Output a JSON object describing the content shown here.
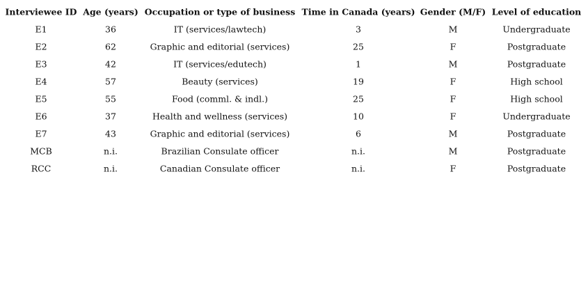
{
  "table": {
    "header": [
      "Interviewee ID",
      "Age (years)",
      "Occupation or type of business",
      "Time in Canada (years)",
      "Gender (M/F)",
      "Level of education"
    ],
    "rows": [
      [
        "E1",
        "36",
        "IT (services/lawtech)",
        "3",
        "M",
        "Undergraduate"
      ],
      [
        "E2",
        "62",
        "Graphic and editorial (services)",
        "25",
        "F",
        "Postgraduate"
      ],
      [
        "E3",
        "42",
        "IT (services/edutech)",
        "1",
        "M",
        "Postgraduate"
      ],
      [
        "E4",
        "57",
        "Beauty (services)",
        "19",
        "F",
        "High school"
      ],
      [
        "E5",
        "55",
        "Food (comml. & indl.)",
        "25",
        "F",
        "High school"
      ],
      [
        "E6",
        "37",
        "Health and wellness (services)",
        "10",
        "F",
        "Undergraduate"
      ],
      [
        "E7",
        "43",
        "Graphic and editorial (services)",
        "6",
        "M",
        "Postgraduate"
      ],
      [
        "MCB",
        "n.i.",
        "Brazilian Consulate officer",
        "n.i.",
        "M",
        "Postgraduate"
      ],
      [
        "RCC",
        "n.i.",
        "Canadian Consulate officer",
        "n.i.",
        "F",
        "Postgraduate"
      ]
    ]
  }
}
